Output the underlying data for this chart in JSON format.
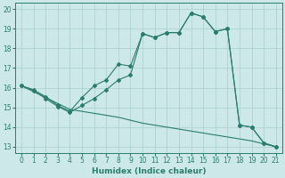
{
  "line1_x": [
    0,
    1,
    2,
    3,
    4,
    5,
    6,
    7,
    8,
    9,
    10,
    11,
    12,
    13,
    14,
    15,
    16,
    17,
    18,
    19,
    20,
    21
  ],
  "line1_y": [
    16.1,
    15.9,
    15.55,
    15.1,
    14.8,
    15.5,
    16.1,
    16.4,
    17.2,
    17.1,
    18.75,
    18.55,
    18.8,
    18.8,
    19.8,
    19.6,
    18.85,
    19.0,
    14.1,
    14.0,
    13.2,
    13.0
  ],
  "line2_x": [
    0,
    1,
    2,
    3,
    4,
    5,
    6,
    7,
    8,
    9,
    10,
    11,
    12,
    13,
    14,
    15,
    16,
    17,
    18,
    19,
    20,
    21
  ],
  "line2_y": [
    16.1,
    15.85,
    15.45,
    15.05,
    14.75,
    15.1,
    15.45,
    15.9,
    16.4,
    16.65,
    18.75,
    18.55,
    18.8,
    18.8,
    19.8,
    19.6,
    18.85,
    19.0,
    14.1,
    14.0,
    13.2,
    13.0
  ],
  "line3_x": [
    0,
    1,
    2,
    3,
    4,
    5,
    6,
    7,
    8,
    9,
    10,
    11,
    12,
    13,
    14,
    15,
    16,
    17,
    18,
    19,
    20,
    21
  ],
  "line3_y": [
    16.1,
    15.8,
    15.5,
    15.2,
    14.9,
    14.8,
    14.7,
    14.6,
    14.5,
    14.35,
    14.2,
    14.1,
    14.0,
    13.9,
    13.8,
    13.7,
    13.6,
    13.5,
    13.4,
    13.3,
    13.15,
    13.0
  ],
  "line_color": "#2a7d6e",
  "bg_color": "#cde8e8",
  "grid_color": "#aacece",
  "xlabel": "Humidex (Indice chaleur)",
  "xlim": [
    -0.5,
    21.5
  ],
  "ylim": [
    12.7,
    20.3
  ],
  "yticks": [
    13,
    14,
    15,
    16,
    17,
    18,
    19,
    20
  ],
  "xticks": [
    0,
    1,
    2,
    3,
    4,
    5,
    6,
    7,
    8,
    9,
    10,
    11,
    12,
    13,
    14,
    15,
    16,
    17,
    18,
    19,
    20,
    21
  ]
}
